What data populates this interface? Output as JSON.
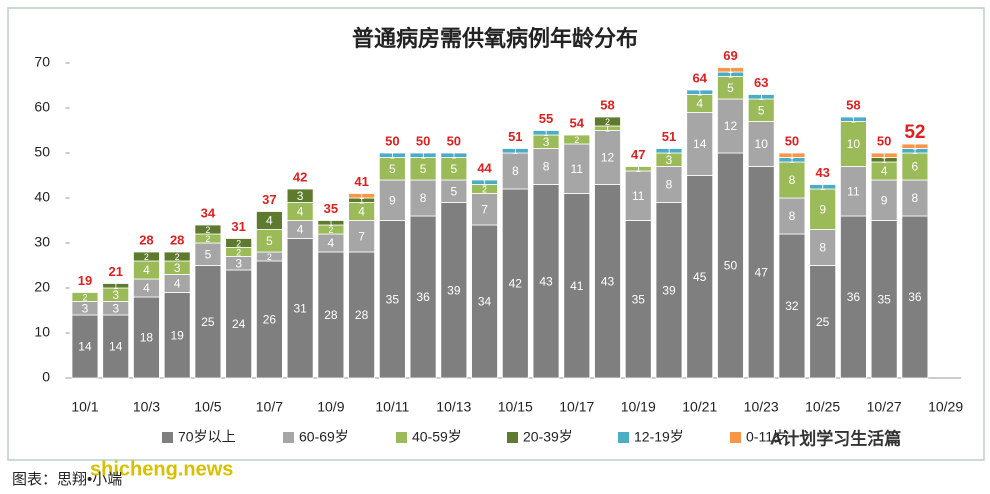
{
  "chart_data": {
    "type": "stacked_bar",
    "title": "普通病房需供氧病例年龄分布",
    "categories": [
      "10/1",
      null,
      "10/3",
      null,
      "10/5",
      null,
      "10/7",
      null,
      "10/9",
      null,
      "10/11",
      null,
      "10/13",
      null,
      "10/15",
      null,
      "10/17",
      null,
      "10/19",
      null,
      "10/21",
      null,
      "10/23",
      null,
      "10/25",
      null,
      "10/27",
      null,
      "10/29"
    ],
    "series": [
      {
        "name": "70岁以上",
        "color": "#7f7f7f",
        "values": [
          14,
          14,
          18,
          19,
          25,
          24,
          26,
          31,
          28,
          28,
          35,
          36,
          39,
          34,
          42,
          43,
          41,
          43,
          35,
          39,
          45,
          50,
          47,
          32,
          25,
          36,
          35,
          36,
          null
        ]
      },
      {
        "name": "60-69岁",
        "color": "#a6a6a6",
        "values": [
          3,
          3,
          4,
          4,
          5,
          3,
          2,
          4,
          4,
          7,
          9,
          8,
          5,
          7,
          8,
          8,
          11,
          12,
          11,
          8,
          14,
          12,
          10,
          8,
          8,
          11,
          9,
          8,
          null
        ]
      },
      {
        "name": "40-59岁",
        "color": "#9bbb59",
        "values": [
          2,
          3,
          4,
          3,
          2,
          2,
          5,
          4,
          2,
          4,
          5,
          5,
          5,
          2,
          0,
          3,
          2,
          1,
          1,
          3,
          4,
          5,
          5,
          8,
          9,
          10,
          4,
          6,
          null
        ]
      },
      {
        "name": "20-39岁",
        "color": "#5e7a2e",
        "values": [
          0,
          1,
          2,
          2,
          2,
          2,
          4,
          3,
          1,
          1,
          0,
          0,
          0,
          0,
          0,
          0,
          0,
          2,
          0,
          0,
          0,
          0,
          0,
          0,
          0,
          0,
          1,
          0,
          null
        ]
      },
      {
        "name": "12-19岁",
        "color": "#4bacc6",
        "values": [
          0,
          0,
          0,
          0,
          0,
          0,
          0,
          0,
          0,
          0,
          1,
          1,
          1,
          1,
          1,
          1,
          0,
          0,
          0,
          1,
          1,
          1,
          1,
          1,
          1,
          1,
          0,
          1,
          null
        ]
      },
      {
        "name": "0-11岁",
        "color": "#f79646",
        "values": [
          0,
          0,
          0,
          0,
          0,
          0,
          0,
          0,
          0,
          1,
          0,
          0,
          0,
          0,
          0,
          0,
          0,
          0,
          0,
          0,
          0,
          1,
          0,
          1,
          0,
          0,
          1,
          1,
          null
        ]
      }
    ],
    "totals": [
      19,
      21,
      28,
      28,
      34,
      31,
      37,
      42,
      35,
      41,
      50,
      50,
      50,
      44,
      51,
      55,
      54,
      58,
      47,
      51,
      64,
      69,
      63,
      50,
      43,
      58,
      50,
      52,
      null
    ],
    "ylim": [
      0,
      70
    ],
    "yticks": [
      0,
      10,
      20,
      30,
      40,
      50,
      60,
      70
    ],
    "grid": false,
    "watermark": "shicheng.news",
    "source": "图表：思翔•小端",
    "brand": "A计划学习生活篇"
  }
}
